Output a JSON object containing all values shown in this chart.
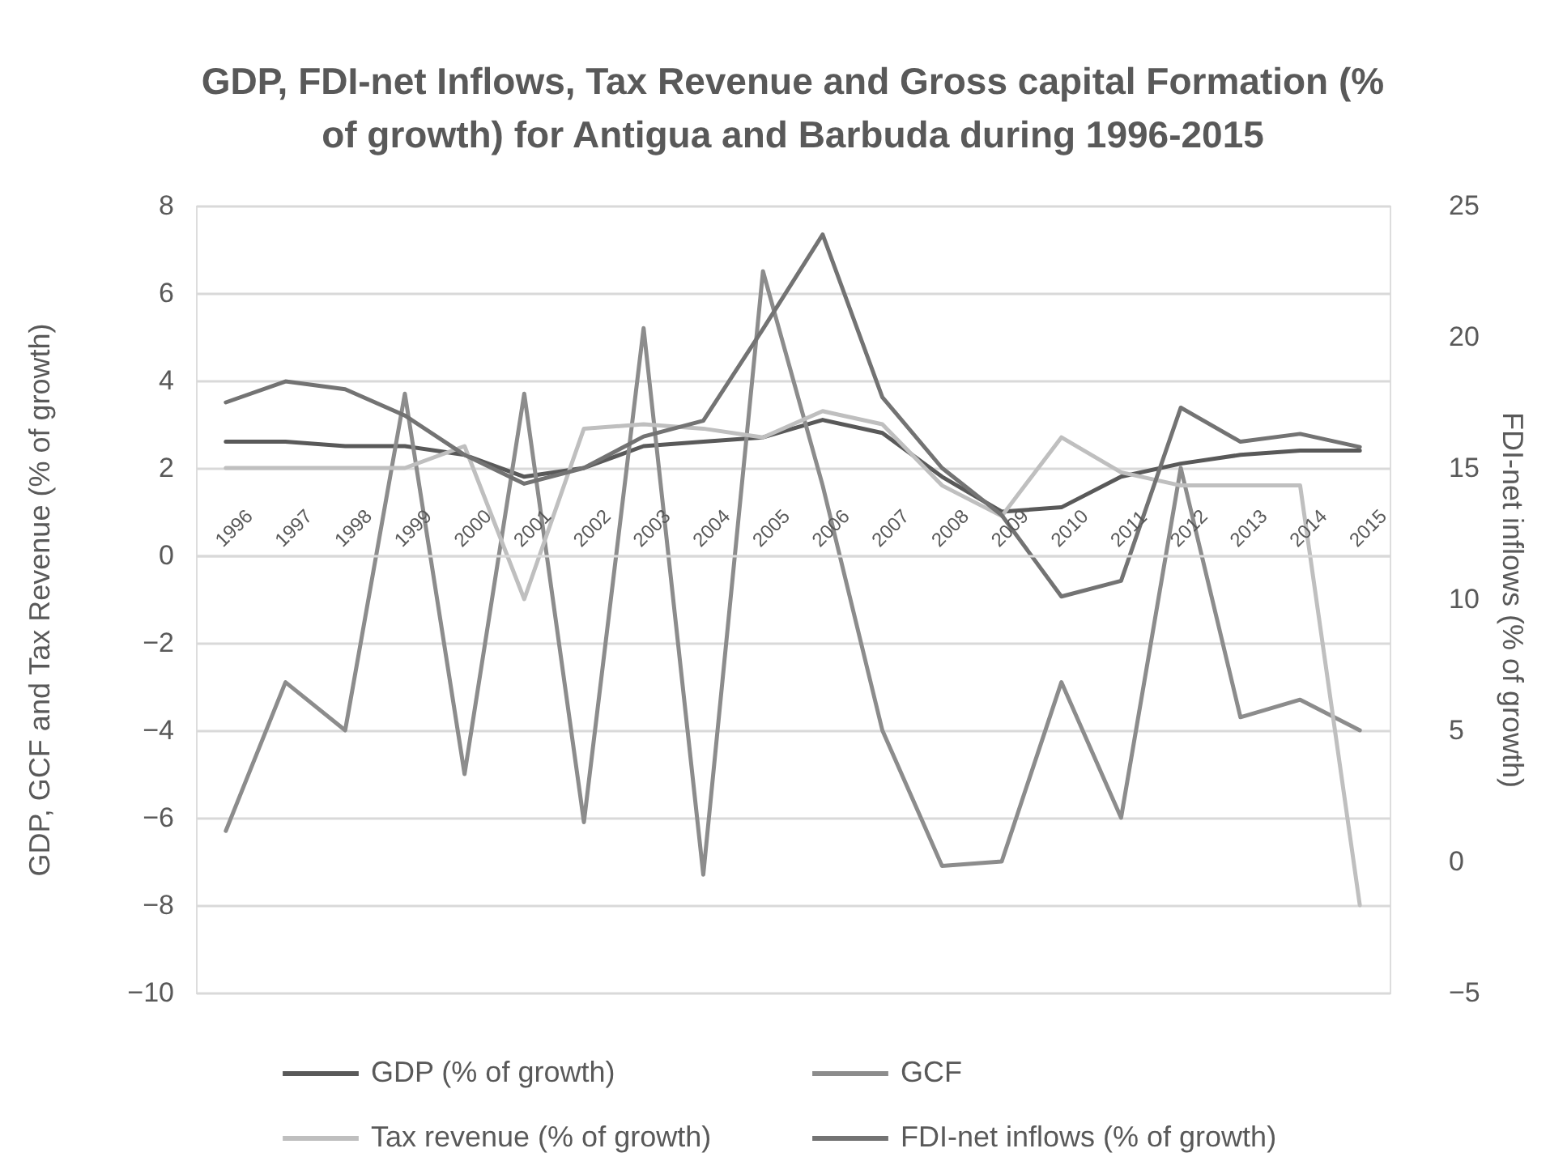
{
  "chart_data": {
    "type": "line",
    "title": "GDP, FDI-net Inflows, Tax Revenue and Gross capital Formation (%\nof growth) for Antigua and Barbuda during 1996-2015",
    "ylabel": "GDP, GCF and Tax Revenue (% of growth)",
    "y2label": "FDI-net inflows (% of growth)",
    "categories": [
      "1996",
      "1997",
      "1998",
      "1999",
      "2000",
      "2001",
      "2002",
      "2003",
      "2004",
      "2005",
      "2006",
      "2007",
      "2008",
      "2009",
      "2010",
      "2011",
      "2012",
      "2013",
      "2014",
      "2015"
    ],
    "ylim": [
      -10,
      8
    ],
    "yticks": [
      -10,
      -8,
      -6,
      -4,
      -2,
      0,
      2,
      4,
      6,
      8
    ],
    "y2lim": [
      -5,
      25
    ],
    "y2ticks": [
      -5,
      0,
      5,
      10,
      15,
      20,
      25
    ],
    "grid": "y",
    "legend": "bottom",
    "series": [
      {
        "name": "GDP (% of growth)",
        "color": "#595959",
        "values": [
          2.6,
          2.6,
          2.5,
          2.5,
          2.3,
          1.8,
          2.0,
          2.5,
          2.6,
          2.7,
          3.1,
          2.8,
          1.8,
          1.0,
          1.1,
          1.8,
          2.1,
          2.3,
          2.4,
          2.4
        ]
      },
      {
        "name": "GCF",
        "color": "#8c8c8c",
        "values": [
          -6.3,
          -2.9,
          -4.0,
          3.7,
          -5.0,
          3.7,
          -6.1,
          5.2,
          -7.3,
          6.5,
          1.6,
          -4.0,
          -7.1,
          -7.0,
          -2.9,
          -6.0,
          2.0,
          -3.7,
          -3.3,
          -4.0
        ]
      },
      {
        "name": "Tax revenue (% of growth)",
        "color": "#bfbfbf",
        "values": [
          2.0,
          2.0,
          2.0,
          2.0,
          2.5,
          -1.0,
          2.9,
          3.0,
          2.9,
          2.7,
          3.3,
          3.0,
          1.6,
          0.9,
          2.7,
          1.9,
          1.6,
          1.6,
          1.6,
          -8.0
        ]
      },
      {
        "name": "FDI-net inflows (% of growth)",
        "color": "#737373",
        "axis": "y2",
        "values": [
          17.5,
          18.3,
          18.0,
          17.0,
          15.5,
          14.4,
          15.0,
          16.2,
          16.8,
          20.3,
          23.9,
          17.7,
          15.0,
          13.2,
          10.1,
          10.7,
          17.3,
          16.0,
          16.3,
          15.8
        ]
      }
    ]
  }
}
